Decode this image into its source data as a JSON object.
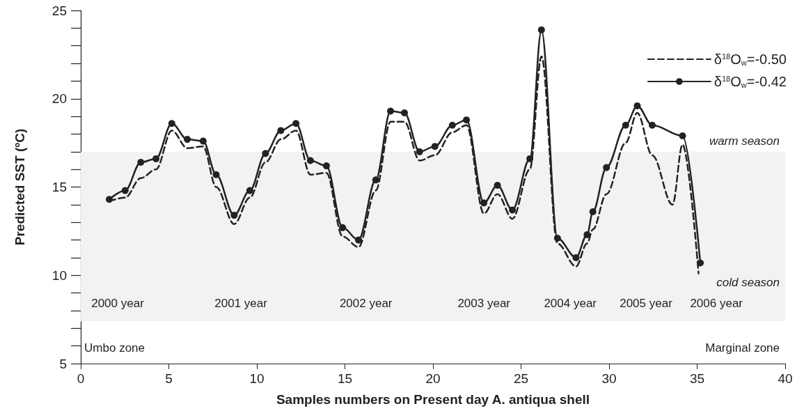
{
  "chart_data": {
    "type": "line",
    "xlabel": "Samples numbers on Present day A. antiqua shell",
    "ylabel": "Predicted SST (ºC)",
    "xlim": [
      0,
      40
    ],
    "xticks": [
      0,
      5,
      10,
      15,
      20,
      25,
      30,
      35,
      40
    ],
    "ylim": [
      5,
      25
    ],
    "yticks": [
      5,
      {
        "value": 6,
        "label": null
      },
      {
        "value": 7,
        "label": null
      },
      {
        "value": 8,
        "label": null
      },
      {
        "value": 9,
        "label": null
      },
      10,
      {
        "value": 11,
        "label": null
      },
      {
        "value": 12,
        "label": null
      },
      {
        "value": 13,
        "label": null
      },
      {
        "value": 14,
        "label": null
      },
      15,
      {
        "value": 16,
        "label": null
      },
      {
        "value": 17,
        "label": null
      },
      {
        "value": 18,
        "label": null
      },
      {
        "value": 19,
        "label": null
      },
      20,
      {
        "value": 21,
        "label": null
      },
      {
        "value": 22,
        "label": null
      },
      {
        "value": 23,
        "label": null
      },
      {
        "value": 24,
        "label": null
      },
      25
    ],
    "grid": false,
    "legend": "top right",
    "series": [
      {
        "name": "δ$^{18}$O$_{w}$=-0.50",
        "color": "#222222",
        "marker": "none",
        "line_style": "dashed",
        "x": [
          1.62,
          2.52,
          3.41,
          4.27,
          5.17,
          6.05,
          6.95,
          7.69,
          8.71,
          9.6,
          10.49,
          11.36,
          12.22,
          13.04,
          13.95,
          14.87,
          15.77,
          16.75,
          17.59,
          18.38,
          19.24,
          20.11,
          21.1,
          21.9,
          22.89,
          23.66,
          24.51,
          25.5,
          26.16,
          27.07,
          28.12,
          28.75,
          29.08,
          29.85,
          30.94,
          31.6,
          32.45,
          33.6,
          34.17,
          35.08
        ],
        "values": [
          14.2,
          14.4,
          15.5,
          16.0,
          18.2,
          17.2,
          17.3,
          15.0,
          12.9,
          14.4,
          16.4,
          17.7,
          18.2,
          15.7,
          15.8,
          12.2,
          11.6,
          14.8,
          18.7,
          18.7,
          16.5,
          16.8,
          18.1,
          18.5,
          13.5,
          14.6,
          13.2,
          16.0,
          22.4,
          11.8,
          10.5,
          11.8,
          12.6,
          14.6,
          17.5,
          19.2,
          16.8,
          14.0,
          17.4,
          10.1
        ]
      },
      {
        "name": "δ$^{18}$O$_{w}$=-0.42",
        "color": "#222222",
        "marker": "circle",
        "line_style": "solid",
        "x": [
          1.62,
          2.52,
          3.41,
          4.27,
          5.17,
          6.05,
          6.95,
          7.69,
          8.71,
          9.6,
          10.49,
          11.36,
          12.22,
          13.04,
          13.95,
          14.87,
          15.77,
          16.75,
          17.59,
          18.38,
          19.24,
          20.11,
          21.1,
          21.9,
          22.89,
          23.66,
          24.51,
          25.5,
          26.16,
          27.07,
          28.12,
          28.75,
          29.08,
          29.85,
          30.94,
          31.6,
          32.45,
          34.17,
          35.18
        ],
        "values": [
          14.3,
          14.8,
          16.4,
          16.6,
          18.6,
          17.7,
          17.6,
          15.7,
          13.4,
          14.8,
          16.9,
          18.2,
          18.6,
          16.5,
          16.2,
          12.7,
          12.0,
          15.4,
          19.3,
          19.2,
          17.0,
          17.3,
          18.5,
          18.8,
          14.1,
          15.1,
          13.7,
          16.6,
          23.9,
          12.1,
          11.0,
          12.3,
          13.6,
          16.1,
          18.5,
          19.6,
          18.5,
          17.9,
          10.7
        ]
      }
    ],
    "bands": [
      {
        "axis": "y",
        "from": 7.4,
        "to": 17,
        "color": "#f2f2f2"
      }
    ],
    "annotations": [
      "warm season",
      "cold season",
      "2000 year",
      "2001 year",
      "2002 year",
      "2003 year",
      "2004 year",
      "2005 year",
      "2006 year",
      "Umbo zone",
      "Marginal zone"
    ]
  }
}
